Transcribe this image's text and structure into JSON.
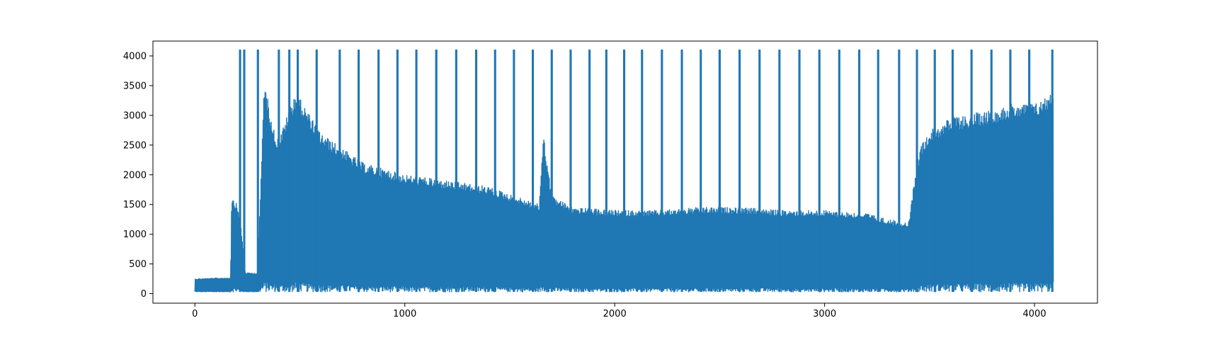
{
  "chart_data": {
    "type": "line",
    "title": "",
    "xlabel": "",
    "ylabel": "",
    "xlim": [
      -200,
      4300
    ],
    "ylim": [
      -160,
      4250
    ],
    "x_ticks": [
      0,
      1000,
      2000,
      3000,
      4000
    ],
    "y_ticks": [
      0,
      500,
      1000,
      1500,
      2000,
      2500,
      3000,
      3500,
      4000
    ],
    "grid": false,
    "legend": "none",
    "series": [
      {
        "color": "#1f77b4",
        "x": [
          0,
          170,
          175,
          200,
          215,
          240,
          300,
          330,
          380,
          400,
          480,
          600,
          800,
          1000,
          1200,
          1400,
          1600,
          1640,
          1660,
          1700,
          1800,
          2000,
          2200,
          2400,
          2600,
          2800,
          3000,
          3200,
          3300,
          3400,
          3440,
          3460,
          3500,
          3600,
          3800,
          3900,
          4000,
          4050,
          4090
        ],
        "y_upper": [
          250,
          270,
          1650,
          1500,
          1300,
          350,
          350,
          3580,
          2700,
          2600,
          3400,
          2700,
          2200,
          2000,
          1900,
          1800,
          1550,
          1500,
          2700,
          1650,
          1450,
          1400,
          1400,
          1450,
          1450,
          1400,
          1400,
          1350,
          1250,
          1200,
          2200,
          2500,
          2750,
          2950,
          3100,
          3200,
          3200,
          3300,
          3400
        ],
        "y_lower": [
          30,
          30,
          30,
          30,
          30,
          30,
          30,
          30,
          30,
          30,
          30,
          30,
          30,
          30,
          30,
          30,
          30,
          30,
          30,
          30,
          30,
          30,
          30,
          30,
          30,
          30,
          30,
          30,
          30,
          30,
          30,
          30,
          30,
          30,
          30,
          30,
          30,
          30,
          30
        ],
        "spike_value": 4096,
        "spikes_x": [
          215,
          235,
          300,
          400,
          450,
          490,
          580,
          690,
          780,
          875,
          965,
          1055,
          1150,
          1245,
          1340,
          1430,
          1520,
          1610,
          1700,
          1790,
          1880,
          1960,
          2045,
          2130,
          2225,
          2320,
          2410,
          2500,
          2595,
          2690,
          2785,
          2880,
          2975,
          3070,
          3165,
          3255,
          3355,
          3440,
          3525,
          3610,
          3700,
          3795,
          3885,
          3975,
          4085
        ]
      }
    ]
  }
}
